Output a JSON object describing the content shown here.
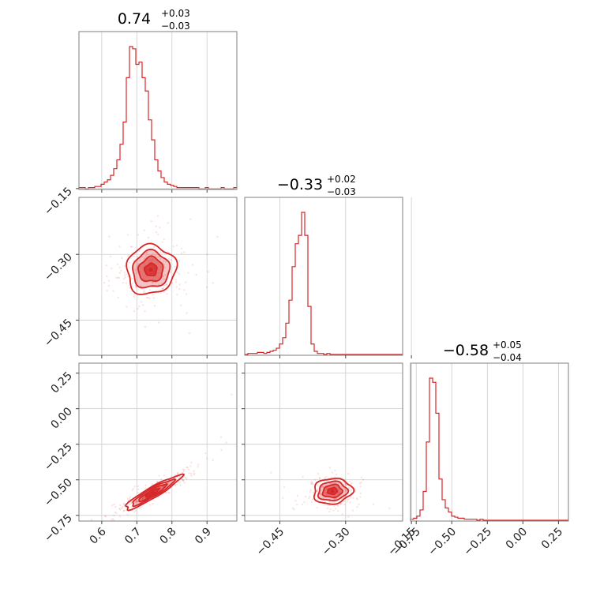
{
  "chart_data": {
    "type": "corner",
    "color": "#d62728",
    "grid": true,
    "parameters": [
      {
        "range": [
          0.535,
          0.985
        ],
        "ticks": [
          0.6,
          0.7,
          0.8,
          0.9
        ],
        "tick_labels": [
          "0.6",
          "0.7",
          "0.8",
          "0.9"
        ],
        "title": {
          "median": "0.74",
          "plus": "+0.03",
          "minus": "−0.03"
        },
        "histogram": {
          "edges_start": 0.535,
          "bin_width": 0.009,
          "counts": [
            1,
            1,
            0,
            1,
            1,
            2,
            2,
            4,
            6,
            8,
            12,
            18,
            26,
            40,
            60,
            100,
            128,
            126,
            112,
            114,
            100,
            88,
            62,
            44,
            26,
            16,
            10,
            6,
            4,
            3,
            2,
            1,
            1,
            1,
            1,
            1,
            1,
            1,
            0,
            0,
            1,
            0,
            0,
            0,
            0,
            1,
            0,
            0,
            0,
            1
          ]
        }
      },
      {
        "range": [
          -0.53,
          -0.17
        ],
        "ticks": [
          -0.45,
          -0.3,
          -0.15
        ],
        "tick_labels": [
          "−0.45",
          "−0.30",
          "−0.15"
        ],
        "title": {
          "median": "−0.33",
          "plus": "+0.02",
          "minus": "−0.03"
        },
        "histogram": {
          "edges_start": -0.53,
          "bin_width": 0.0072,
          "counts": [
            0,
            1,
            1,
            1,
            2,
            2,
            1,
            2,
            3,
            4,
            6,
            10,
            16,
            30,
            52,
            84,
            106,
            114,
            136,
            114,
            46,
            10,
            3,
            1,
            1,
            0,
            1,
            0,
            0,
            0,
            0,
            0,
            0,
            0,
            0,
            0,
            0,
            0,
            0,
            0,
            0,
            0,
            0,
            0,
            0,
            0,
            0,
            0,
            0,
            0
          ]
        }
      },
      {
        "range": [
          -0.79,
          0.32
        ],
        "ticks": [
          -0.75,
          -0.5,
          -0.25,
          0.0,
          0.25
        ],
        "tick_labels": [
          "−0.75",
          "−0.50",
          "−0.25",
          "0.00",
          "0.25"
        ],
        "title": {
          "median": "−0.58",
          "plus": "+0.05",
          "minus": "−0.04"
        },
        "histogram": {
          "edges_start": -0.79,
          "bin_width": 0.0222,
          "counts": [
            1,
            2,
            4,
            10,
            28,
            76,
            138,
            134,
            104,
            40,
            20,
            12,
            8,
            4,
            3,
            2,
            2,
            1,
            1,
            1,
            1,
            0,
            1,
            0,
            0,
            0,
            0,
            0,
            0,
            0,
            0,
            0,
            0,
            0,
            0,
            0,
            0,
            0,
            0,
            0,
            0,
            0,
            0,
            0,
            0,
            0,
            0,
            0,
            0,
            0
          ]
        }
      }
    ],
    "pairs": [
      {
        "x_param": 0,
        "y_param": 1,
        "mean": [
          0.74,
          -0.335
        ],
        "sigma": [
          0.035,
          0.028
        ],
        "rho": 0.05,
        "points": 260,
        "spread": [
          0.06,
          0.06
        ],
        "outliers": [
          [
            0.93,
            -0.26
          ],
          [
            0.9,
            -0.3
          ],
          [
            0.6,
            -0.15
          ],
          [
            0.85,
            -0.48
          ],
          [
            0.62,
            -0.36
          ]
        ],
        "levels": [
          0.5,
          1.0,
          1.5,
          2.0
        ]
      },
      {
        "x_param": 0,
        "y_param": 2,
        "mean": [
          0.745,
          -0.59
        ],
        "sigma": [
          0.04,
          0.06
        ],
        "rho": 0.93,
        "points": 300,
        "spread": [
          0.09,
          0.13
        ],
        "outliers": [
          [
            0.94,
            -0.2
          ],
          [
            0.97,
            0.1
          ],
          [
            0.9,
            -0.35
          ],
          [
            0.63,
            -0.68
          ]
        ],
        "levels": [
          0.5,
          1.0,
          1.5,
          2.0
        ]
      },
      {
        "x_param": 1,
        "y_param": 2,
        "mean": [
          -0.33,
          -0.58
        ],
        "sigma": [
          0.022,
          0.045
        ],
        "rho": 0.1,
        "points": 260,
        "spread": [
          0.05,
          0.09
        ],
        "outliers": [
          [
            -0.47,
            -0.45
          ],
          [
            -0.42,
            -0.7
          ],
          [
            -0.2,
            -0.7
          ],
          [
            -0.26,
            -0.5
          ],
          [
            -0.44,
            -0.55
          ]
        ],
        "levels": [
          0.5,
          1.0,
          1.5,
          2.0
        ]
      }
    ]
  }
}
